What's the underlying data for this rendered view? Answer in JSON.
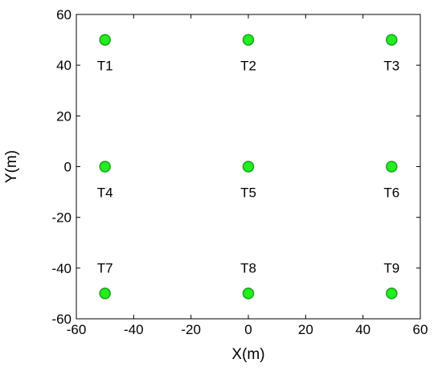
{
  "chart_data": {
    "type": "scatter",
    "title": "",
    "xlabel": "X(m)",
    "ylabel": "Y(m)",
    "xlim": [
      -60,
      60
    ],
    "ylim": [
      -60,
      60
    ],
    "xticks": [
      -60,
      -40,
      -20,
      0,
      20,
      40,
      60
    ],
    "yticks": [
      -60,
      -40,
      -20,
      0,
      20,
      40,
      60
    ],
    "grid": false,
    "marker_color": "#22ee22",
    "marker_edge_color": "#18a018",
    "points": [
      {
        "label": "T1",
        "x": -50,
        "y": 50,
        "label_pos": "below"
      },
      {
        "label": "T2",
        "x": 0,
        "y": 50,
        "label_pos": "below"
      },
      {
        "label": "T3",
        "x": 50,
        "y": 50,
        "label_pos": "below"
      },
      {
        "label": "T4",
        "x": -50,
        "y": 0,
        "label_pos": "below"
      },
      {
        "label": "T5",
        "x": 0,
        "y": 0,
        "label_pos": "below"
      },
      {
        "label": "T6",
        "x": 50,
        "y": 0,
        "label_pos": "below"
      },
      {
        "label": "T7",
        "x": -50,
        "y": -50,
        "label_pos": "above"
      },
      {
        "label": "T8",
        "x": 0,
        "y": -50,
        "label_pos": "above"
      },
      {
        "label": "T9",
        "x": 50,
        "y": -50,
        "label_pos": "above"
      }
    ]
  }
}
